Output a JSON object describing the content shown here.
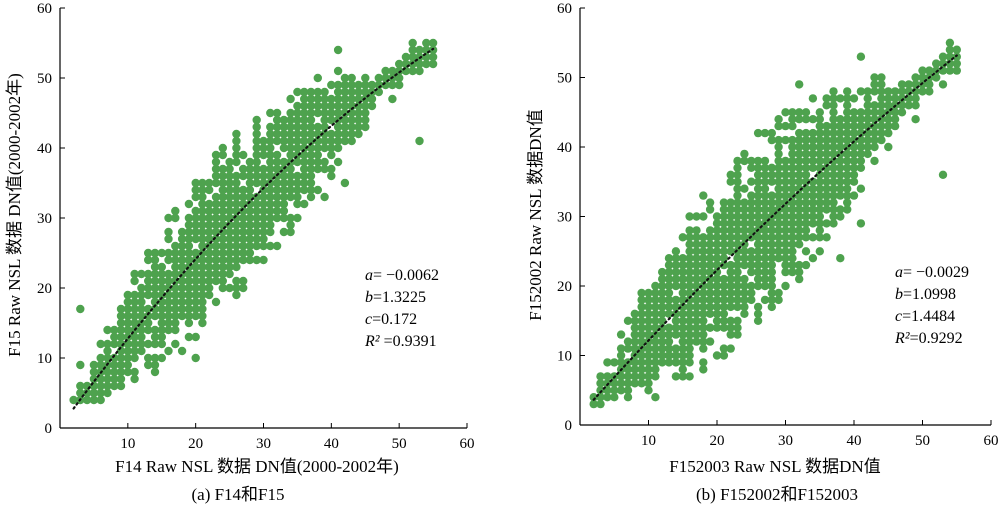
{
  "colors": {
    "points": "#4ea24e",
    "fit_line": "#111111",
    "axes": "#000000"
  },
  "chart_data": [
    {
      "id": "a",
      "type": "scatter",
      "caption": "(a) F14和F15",
      "xlabel": "F14 Raw NSL 数据 DN值(2000-2002年)",
      "ylabel": "F15 Raw NSL 数据 DN值(2000-2002年)",
      "xlim": [
        0,
        60
      ],
      "ylim": [
        0,
        60
      ],
      "xticks": [
        10,
        20,
        30,
        40,
        50,
        60
      ],
      "yticks": [
        0,
        10,
        20,
        30,
        40,
        50,
        60
      ],
      "fit": {
        "a": -0.0062,
        "b": 1.3225,
        "c": 0.172,
        "R2": 0.9391,
        "x_range": [
          2,
          55
        ]
      },
      "scatter_band": {
        "x_range": [
          2,
          55
        ],
        "y_min": 4,
        "y_max": 55,
        "width": [
          2,
          11
        ]
      },
      "annotations": [
        {
          "name": "a",
          "text": "= −0.0062"
        },
        {
          "name": "b",
          "text": "=1.3225"
        },
        {
          "name": "c",
          "text": "=0.172"
        },
        {
          "name": "R²",
          "text": " =0.9391"
        }
      ],
      "grid": false
    },
    {
      "id": "b",
      "type": "scatter",
      "caption": "(b) F152002和F152003",
      "xlabel": "F152003 Raw NSL 数据DN值",
      "ylabel": "F152002 Raw NSL 数据DN值",
      "xlim": [
        0,
        60
      ],
      "ylim": [
        0,
        60
      ],
      "xticks": [
        10,
        20,
        30,
        40,
        50,
        60
      ],
      "yticks": [
        0,
        10,
        20,
        30,
        40,
        50,
        60
      ],
      "fit": {
        "a": -0.0029,
        "b": 1.0998,
        "c": 1.4484,
        "R2": 0.9292,
        "x_range": [
          2,
          55
        ]
      },
      "scatter_band": {
        "x_range": [
          2,
          55
        ],
        "y_min": 3,
        "y_max": 55,
        "width": [
          2,
          13
        ]
      },
      "annotations": [
        {
          "name": "a",
          "text": "= −0.0029"
        },
        {
          "name": "b",
          "text": "=1.0998"
        },
        {
          "name": "c",
          "text": "=1.4484"
        },
        {
          "name": "R²",
          "text": "=0.9292"
        }
      ],
      "grid": false
    }
  ]
}
